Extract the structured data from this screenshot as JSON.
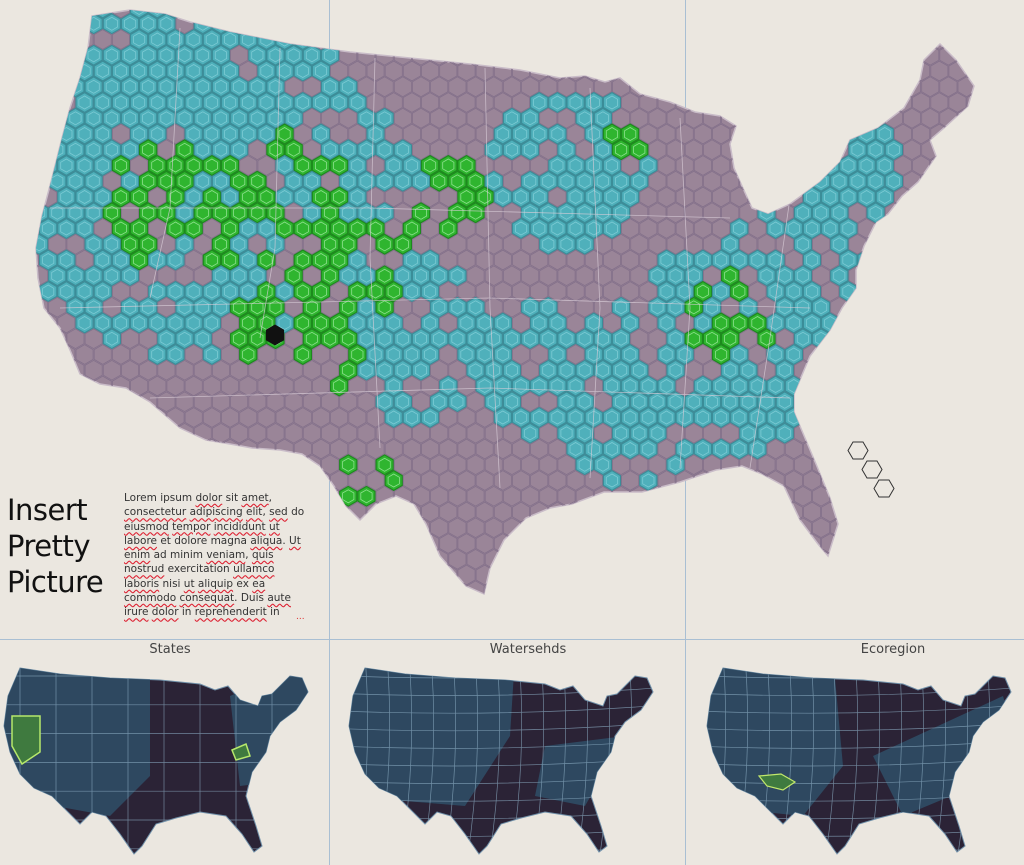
{
  "title": {
    "line1": "Insert",
    "line2": "Pretty",
    "line3": "Picture"
  },
  "body_text": {
    "segments": [
      {
        "t": "Lorem ipsum ",
        "sq": false
      },
      {
        "t": "dolor",
        "sq": true
      },
      {
        "t": " sit ",
        "sq": false
      },
      {
        "t": "amet",
        "sq": true
      },
      {
        "t": ", ",
        "sq": false
      },
      {
        "t": "consectetur",
        "sq": true
      },
      {
        "t": " ",
        "sq": false
      },
      {
        "t": "adipiscing",
        "sq": true
      },
      {
        "t": " ",
        "sq": false
      },
      {
        "t": "elit",
        "sq": true
      },
      {
        "t": ", ",
        "sq": false
      },
      {
        "t": "sed",
        "sq": true
      },
      {
        "t": " do ",
        "sq": false
      },
      {
        "t": "eiusmod",
        "sq": true
      },
      {
        "t": " ",
        "sq": false
      },
      {
        "t": "tempor",
        "sq": true
      },
      {
        "t": " ",
        "sq": false
      },
      {
        "t": "incididunt",
        "sq": true
      },
      {
        "t": " ",
        "sq": false
      },
      {
        "t": "ut",
        "sq": true
      },
      {
        "t": " ",
        "sq": false
      },
      {
        "t": "labore",
        "sq": true
      },
      {
        "t": " et dolore magna ",
        "sq": false
      },
      {
        "t": "aliqua",
        "sq": true
      },
      {
        "t": ". ",
        "sq": false
      },
      {
        "t": "Ut",
        "sq": true
      },
      {
        "t": " ",
        "sq": false
      },
      {
        "t": "enim",
        "sq": true
      },
      {
        "t": " ad minim ",
        "sq": false
      },
      {
        "t": "veniam",
        "sq": true
      },
      {
        "t": ", ",
        "sq": false
      },
      {
        "t": "quis",
        "sq": true
      },
      {
        "t": " ",
        "sq": false
      },
      {
        "t": "nostrud",
        "sq": true
      },
      {
        "t": " exercitation ",
        "sq": false
      },
      {
        "t": "ullamco",
        "sq": true
      },
      {
        "t": " ",
        "sq": false
      },
      {
        "t": "laboris",
        "sq": true
      },
      {
        "t": " nisi ",
        "sq": false
      },
      {
        "t": "ut",
        "sq": true
      },
      {
        "t": " ",
        "sq": false
      },
      {
        "t": "aliquip",
        "sq": true
      },
      {
        "t": " ex ",
        "sq": false
      },
      {
        "t": "ea",
        "sq": true
      },
      {
        "t": " ",
        "sq": false
      },
      {
        "t": "commodo",
        "sq": true
      },
      {
        "t": " ",
        "sq": false
      },
      {
        "t": "consequat",
        "sq": true
      },
      {
        "t": ". Duis ",
        "sq": false
      },
      {
        "t": "aute",
        "sq": true
      },
      {
        "t": " ",
        "sq": false
      },
      {
        "t": "irure",
        "sq": true
      },
      {
        "t": " ",
        "sq": false
      },
      {
        "t": "dolor",
        "sq": true
      },
      {
        "t": " in ",
        "sq": false
      },
      {
        "t": "reprehenderit",
        "sq": true
      },
      {
        "t": " in",
        "sq": false
      }
    ],
    "ellipsis": "..."
  },
  "panels": [
    {
      "label": "States"
    },
    {
      "label": "Watersehds"
    },
    {
      "label": "Ecoregion"
    }
  ],
  "colors": {
    "background": "#ebe7e0",
    "land_base": "#9a8598",
    "hex_cyan": "#4fb0bb",
    "hex_green": "#2fb52f",
    "hex_selected": "#111111",
    "mini_dark": "#2b2336",
    "mini_blue": "#2e4b63",
    "mini_highlight": "#3f7a3f",
    "divider": "#a9bfd3"
  }
}
